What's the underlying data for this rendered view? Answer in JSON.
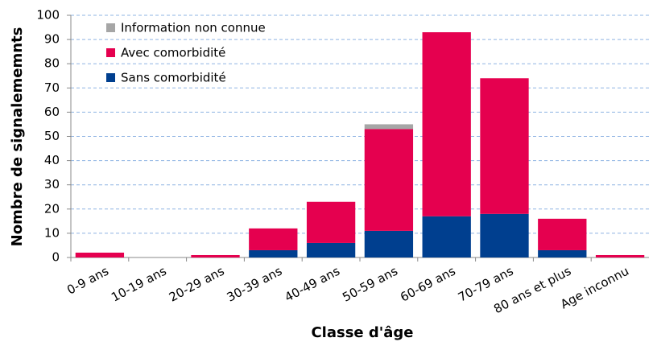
{
  "chart_data": {
    "type": "bar",
    "stacked": true,
    "xlabel": "Classe d'âge",
    "ylabel": "Nombre de signalememnts",
    "categories": [
      "0-9 ans",
      "10-19 ans",
      "20-29 ans",
      "30-39 ans",
      "40-49 ans",
      "50-59 ans",
      "60-69 ans",
      "70-79 ans",
      "80 ans et plus",
      "Age inconnu"
    ],
    "series": [
      {
        "name": "Sans comorbidité",
        "color": "#003f8f",
        "values": [
          0,
          0,
          0,
          3,
          6,
          11,
          17,
          18,
          3,
          0
        ]
      },
      {
        "name": "Avec comorbidité",
        "color": "#e5004f",
        "values": [
          2,
          0,
          1,
          9,
          17,
          42,
          76,
          56,
          13,
          1
        ]
      },
      {
        "name": "Information non connue",
        "color": "#a6a6a6",
        "values": [
          0,
          0,
          0,
          0,
          0,
          2,
          0,
          0,
          0,
          0
        ]
      }
    ],
    "ylim": [
      0,
      100
    ],
    "yticks": [
      0,
      10,
      20,
      30,
      40,
      50,
      60,
      70,
      80,
      90,
      100
    ],
    "grid": true,
    "legend": "upper left"
  }
}
